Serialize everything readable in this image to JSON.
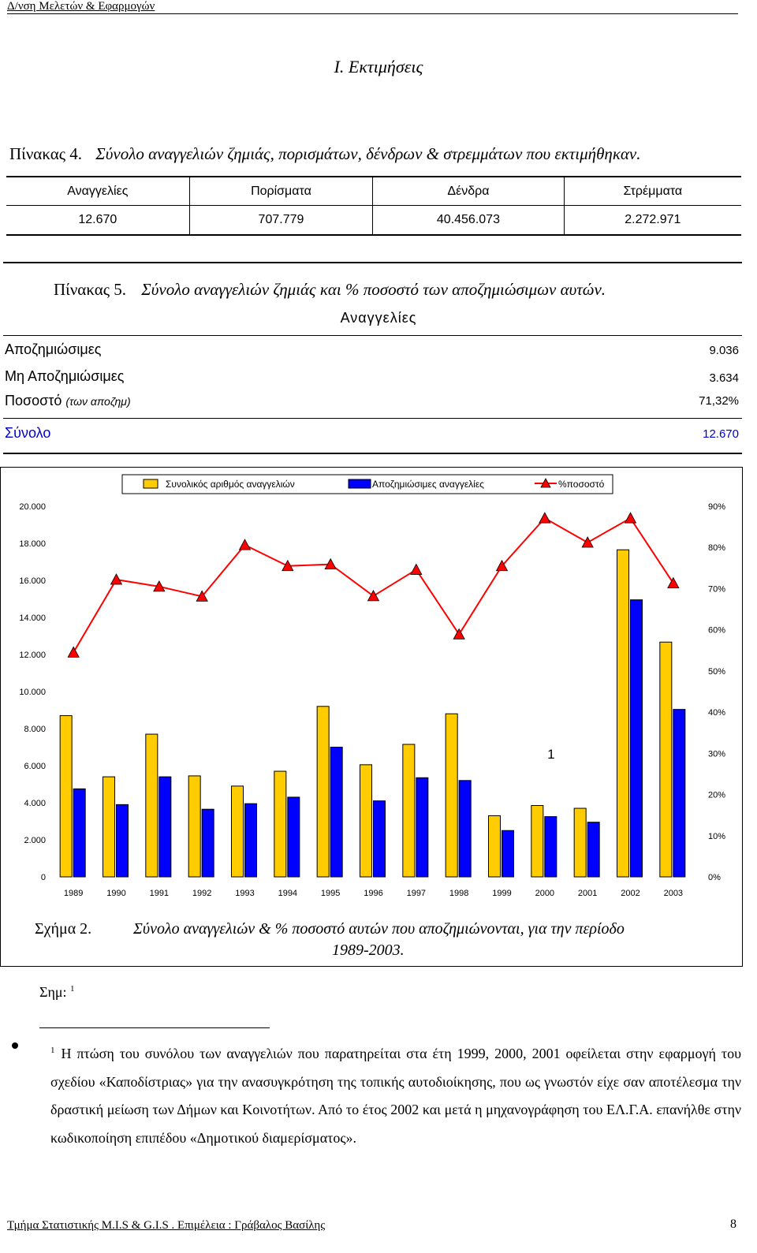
{
  "header": {
    "organization": "Δ/νση Μελετών & Εφαρμογών"
  },
  "section_title": "I.   Εκτιμήσεις",
  "table4": {
    "label": "Πίνακας  4.",
    "caption": "Σύνολο αναγγελιών ζημιάς, πορισμάτων, δένδρων & στρεμμάτων που εκτιμήθηκαν.",
    "headers": [
      "Αναγγελίες",
      "Πορίσματα",
      "Δένδρα",
      "Στρέμματα"
    ],
    "values": [
      "12.670",
      "707.779",
      "40.456.073",
      "2.272.971"
    ]
  },
  "table5": {
    "label": "Πίνακας 5.",
    "caption": "Σύνολο αναγγελιών ζημιάς  και  % ποσοστό των αποζημιώσιμων αυτών.",
    "column_header": "Αναγγελίες",
    "rows": [
      {
        "label": "Αποζημιώσιμες",
        "note": "",
        "value": "9.036"
      },
      {
        "label": "Μη Αποζημιώσιμες",
        "note": "",
        "value": "3.634"
      },
      {
        "label": "Ποσοστό",
        "note": "(των αποζημ)",
        "value": "71,32%"
      }
    ],
    "total": {
      "label": "Σύνολο",
      "value": "12.670"
    },
    "total_color": "#0000cc"
  },
  "chart_data": {
    "type": "bar",
    "categories": [
      "1989",
      "1990",
      "1991",
      "1992",
      "1993",
      "1994",
      "1995",
      "1996",
      "1997",
      "1998",
      "1999",
      "2000",
      "2001",
      "2002",
      "2003"
    ],
    "series": [
      {
        "name": "Συνολικός αριθμός αναγγελιών",
        "type": "bar",
        "axis": "left",
        "color": "#ffcc00",
        "values": [
          8700,
          5400,
          7700,
          5450,
          4900,
          5700,
          9200,
          6050,
          7150,
          8800,
          3300,
          3850,
          3700,
          17650,
          12670
        ]
      },
      {
        "name": "Αποζημιώσιμες αναγγελίες",
        "type": "bar",
        "axis": "left",
        "color": "#0000ff",
        "values": [
          4750,
          3900,
          5400,
          3650,
          3950,
          4300,
          7000,
          4100,
          5350,
          5200,
          2500,
          3250,
          2950,
          14950,
          9036
        ]
      },
      {
        "name": "%ποσοστό",
        "type": "line",
        "axis": "right",
        "color": "#ff0000",
        "values": [
          54.5,
          72.2,
          70.5,
          68.1,
          80.6,
          75.5,
          75.9,
          68.2,
          74.6,
          58.9,
          75.5,
          87.1,
          81.2,
          87.1,
          71.32
        ]
      }
    ],
    "y_left": {
      "ylim": [
        0,
        20000
      ],
      "ticks": [
        "0",
        "2.000",
        "4.000",
        "6.000",
        "8.000",
        "10.000",
        "12.000",
        "14.000",
        "16.000",
        "18.000",
        "20.000"
      ]
    },
    "y_right": {
      "ylim": [
        0,
        90
      ],
      "ticks": [
        "0%",
        "10%",
        "20%",
        "30%",
        "40%",
        "50%",
        "60%",
        "70%",
        "80%",
        "90%"
      ]
    },
    "annotation": "1",
    "annotation_category": "2000",
    "legend_position": "top"
  },
  "figure": {
    "label": "Σχήμα 2.",
    "caption_line1": "Σύνολο αναγγελιών & % ποσοστό αυτών που αποζημιώνονται, για την περίοδο",
    "caption_line2": "1989-2003."
  },
  "note": {
    "label": "Σημ:",
    "ref": "1"
  },
  "footnote": {
    "ref": "1",
    "text": "Η πτώση του συνόλου των αναγγελιών που παρατηρείται στα έτη 1999, 2000, 2001 οφείλεται στην εφαρμογή του σχεδίου «Καποδίστριας» για την ανασυγκρότηση της τοπικής αυτοδιοίκησης, που ως γνωστόν είχε σαν αποτέλεσμα την δραστική μείωση των Δήμων και Κοινοτήτων.  Από το έτος 2002 και μετά η μηχανογράφηση του ΕΛ.Γ.Α. επανήλθε στην κωδικοποίηση επιπέδου «Δημοτικού διαμερίσματος»."
  },
  "footer": {
    "text": "Τμήμα Στατιστικής M.I.S & G.I.S . Επιμέλεια : Γράβαλος Βασίλης",
    "page": "8"
  }
}
